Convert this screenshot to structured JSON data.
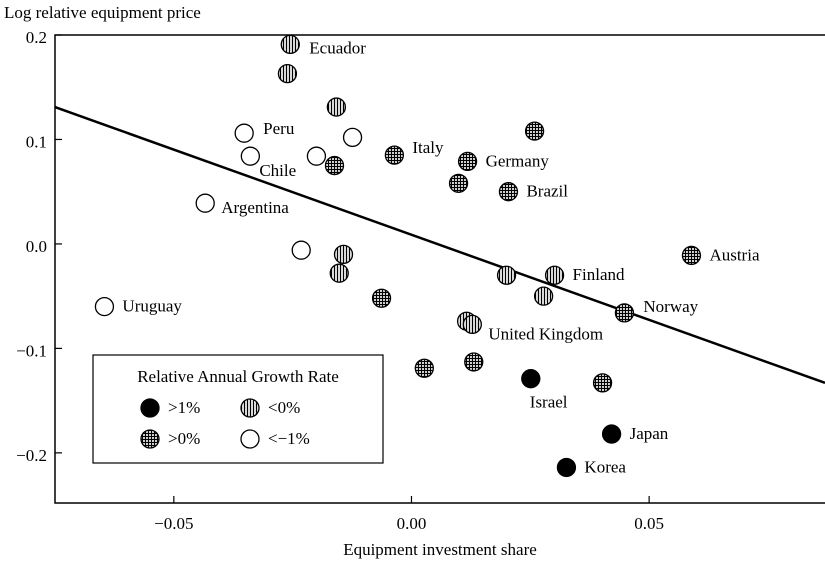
{
  "chart_data": {
    "type": "scatter",
    "y_label": "Log relative equipment price",
    "x_label": "Equipment investment share",
    "xlim": [
      -0.075,
      0.087
    ],
    "ylim": [
      -0.248,
      0.2
    ],
    "xticks": [
      {
        "value": -0.05,
        "label": "−0.05"
      },
      {
        "value": 0,
        "label": "0.00"
      },
      0.05
    ],
    "yticks": [
      0.2,
      0.1,
      {
        "value": 0,
        "label": "0.0"
      },
      {
        "value": -0.1,
        "label": "−0.1"
      },
      {
        "value": -0.2,
        "label": "−0.2"
      }
    ],
    "legend_title": "Relative Annual Growth Rate",
    "legend_position": "lower left",
    "fit_line": {
      "x": [
        -0.075,
        0.087
      ],
      "y": [
        0.131,
        -0.133
      ]
    },
    "series": [
      {
        "name": ">1%",
        "color": "#000000",
        "pattern": "solid",
        "x": [
          0.0251,
          0.0421,
          0.0326
        ],
        "y": [
          -0.129,
          -0.182,
          -0.214
        ],
        "labels": [
          "Israel",
          "Japan",
          "Korea"
        ]
      },
      {
        "name": "<0%",
        "color": "#000000",
        "pattern": "vertical",
        "x": [
          -0.0255,
          -0.0261,
          -0.0158,
          -0.0143,
          -0.0152,
          0.02,
          0.0301,
          0.0278,
          0.0116,
          0.0128
        ],
        "y": [
          0.191,
          0.163,
          0.131,
          -0.01,
          -0.028,
          -0.03,
          -0.03,
          -0.05,
          -0.074,
          -0.077
        ],
        "labels": [
          "Ecuador",
          null,
          null,
          null,
          null,
          null,
          "Finland",
          null,
          null,
          "United Kingdom"
        ]
      },
      {
        "name": ">0%",
        "color": "#000000",
        "pattern": "crosshatch",
        "x": [
          -0.0162,
          -0.0036,
          0.0259,
          0.0118,
          0.0099,
          0.0204,
          -0.0063,
          0.0589,
          0.0448,
          0.0027,
          0.0131,
          0.0402
        ],
        "y": [
          0.075,
          0.085,
          0.108,
          0.079,
          0.058,
          0.05,
          -0.052,
          -0.011,
          -0.066,
          -0.119,
          -0.113,
          -0.133
        ],
        "labels": [
          null,
          "Italy",
          null,
          "Germany",
          null,
          "Brazil",
          null,
          "Austria",
          "Norway",
          null,
          null,
          null
        ]
      },
      {
        "name": "<−1%",
        "color": "#000000",
        "pattern": "open",
        "x": [
          -0.0124,
          -0.0352,
          -0.0339,
          -0.02,
          -0.0434,
          -0.0232,
          -0.0646
        ],
        "y": [
          0.102,
          0.106,
          0.084,
          0.084,
          0.039,
          -0.006,
          -0.06
        ],
        "labels": [
          null,
          "Peru",
          "Chile",
          null,
          "Argentina",
          null,
          "Uruguay"
        ]
      }
    ]
  }
}
